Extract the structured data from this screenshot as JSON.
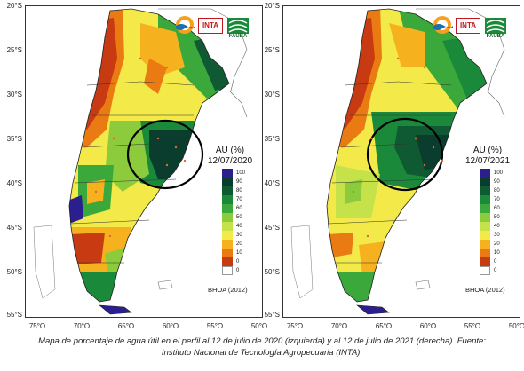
{
  "map": {
    "lat_labels": [
      "20°S",
      "25°S",
      "30°S",
      "35°S",
      "40°S",
      "45°S",
      "50°S",
      "55°S"
    ],
    "lon_labels": [
      "75°O",
      "70°O",
      "65°O",
      "60°O",
      "55°O",
      "50°O"
    ],
    "legend_ticks": [
      "100",
      "90",
      "80",
      "70",
      "60",
      "50",
      "40",
      "30",
      "20",
      "10",
      "0",
      "0"
    ],
    "legend_colors": [
      "#2b1f8f",
      "#0b3d2e",
      "#0f5a32",
      "#1a8a3a",
      "#3aa83a",
      "#8ccc3c",
      "#c6e24a",
      "#f3ea4a",
      "#f6b21e",
      "#ea7a12",
      "#c83a12",
      "#ffffff"
    ],
    "logos": {
      "inta": "INTA",
      "fauba": "FAUBA",
      "agro_logo": "orange-blue-swirl-icon"
    }
  },
  "left_panel": {
    "legend_title": "AU (%)",
    "legend_date": "12/07/2020",
    "source": "BHOA (2012)"
  },
  "right_panel": {
    "legend_title": "AU (%)",
    "legend_date": "12/07/2021",
    "source": "BHOA (2012)"
  },
  "caption": {
    "line1": "Mapa de porcentaje de agua útil en el perfil al 12 de julio de 2020 (izquierda) y al 12 de julio de 2021 (derecha). Fuente:",
    "line2": "Instituto Nacional de Tecnología Agropecuaria (INTA)."
  }
}
